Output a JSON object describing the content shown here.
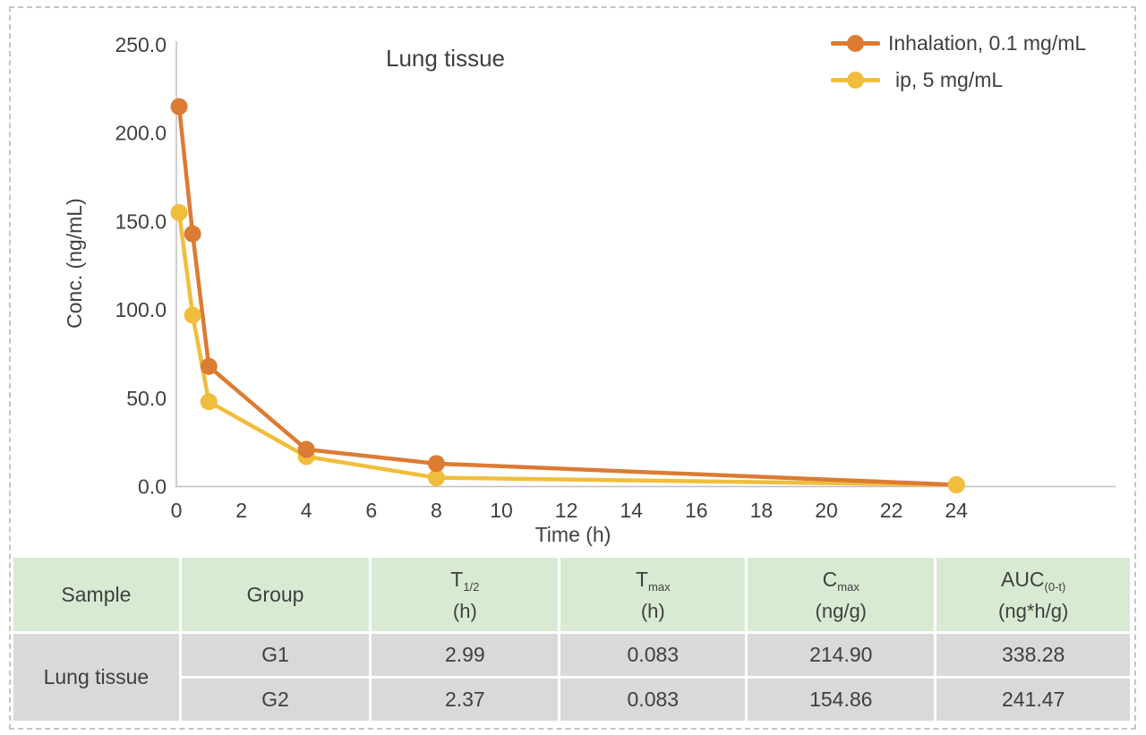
{
  "page": {
    "border_color": "#c4c4c4",
    "text_color": "#3f3f3f"
  },
  "chart_data": {
    "type": "line",
    "title": "Lung tissue",
    "xlabel": "Time (h)",
    "ylabel": "Conc. (ng/mL)",
    "xlim": [
      0,
      28.9
    ],
    "ylim": [
      0,
      250
    ],
    "grid": false,
    "legend_position": "top-right",
    "axis_color": "#bfbfbf",
    "tick_label_color": "#404040",
    "xticks": [
      0,
      2,
      4,
      6,
      8,
      10,
      12,
      14,
      16,
      18,
      20,
      22,
      24
    ],
    "yticks": [
      {
        "v": 0,
        "label": "0.0"
      },
      {
        "v": 50,
        "label": "50.0"
      },
      {
        "v": 100,
        "label": "100.0"
      },
      {
        "v": 150,
        "label": "150.0"
      },
      {
        "v": 200,
        "label": "200.0"
      },
      {
        "v": 250,
        "label": "250.0"
      }
    ],
    "series": [
      {
        "name": "Inhalation, 0.1 mg/mL",
        "color": "#dc7b33",
        "x": [
          0.083,
          0.5,
          1,
          4,
          8,
          24
        ],
        "y": [
          215,
          143,
          68,
          21,
          13,
          1
        ]
      },
      {
        "name": "ip, 5 mg/mL",
        "color": "#f0be3c",
        "x": [
          0.083,
          0.5,
          1,
          4,
          8,
          24
        ],
        "y": [
          155,
          97,
          48,
          17,
          5,
          1
        ]
      }
    ]
  },
  "table": {
    "header_bg": "#d9ead3",
    "row_bg": "#d9d9d9",
    "headers": [
      {
        "main": "Sample",
        "sub": "",
        "unit": ""
      },
      {
        "main": "Group",
        "sub": "",
        "unit": ""
      },
      {
        "main": "T",
        "sub": "1/2",
        "unit": "(h)"
      },
      {
        "main": "T",
        "sub": "max",
        "unit": "(h)"
      },
      {
        "main": "C",
        "sub": "max",
        "unit": "(ng/g)"
      },
      {
        "main": "AUC",
        "sub": "(0-t)",
        "unit": "(ng*h/g)"
      }
    ],
    "sample_label": "Lung tissue",
    "rows": [
      {
        "group": "G1",
        "t_half": "2.99",
        "t_max": "0.083",
        "c_max": "214.90",
        "auc": "338.28"
      },
      {
        "group": "G2",
        "t_half": "2.37",
        "t_max": "0.083",
        "c_max": "154.86",
        "auc": "241.47"
      }
    ]
  }
}
